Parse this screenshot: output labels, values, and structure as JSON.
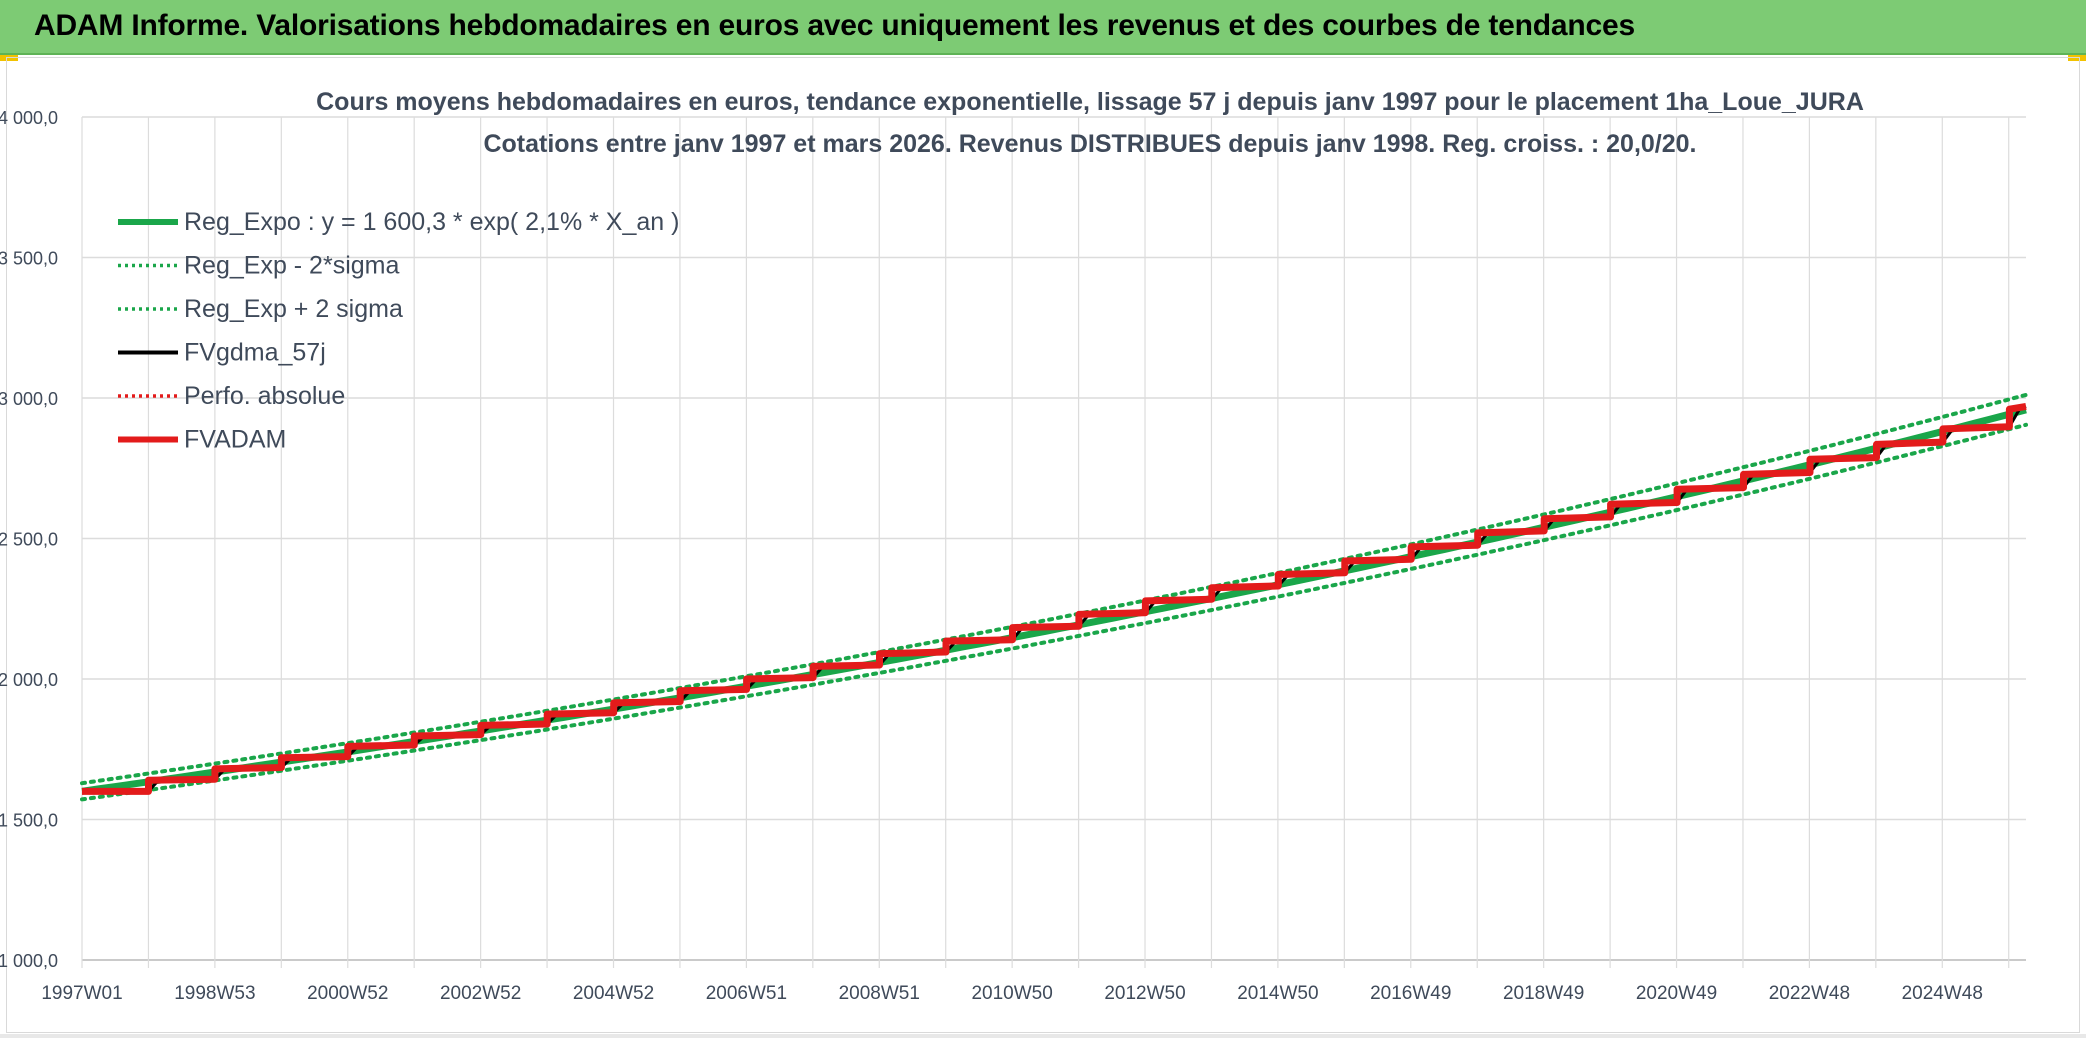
{
  "banner": {
    "title": "ADAM Informe. Valorisations hebdomadaires en euros avec uniquement les revenus et des courbes de tendances"
  },
  "colors": {
    "banner": "#7dcb74",
    "reg": "#1aa64a",
    "black": "#000000",
    "red": "#e31b1b",
    "grid": "#dcdcdc",
    "text": "#3f4a5a"
  },
  "chart_data": {
    "type": "line",
    "title": "Cours moyens hebdomadaires en euros, tendance exponentielle, lissage 57 j depuis janv 1997 pour le placement 1ha_Loue_JURA",
    "subtitle": "Cotations entre janv 1997 et mars 2026. Revenus DISTRIBUES depuis janv 1998. Reg. croiss. : 20,0/20.",
    "xlabel": "",
    "ylabel": "",
    "ylim": [
      1000,
      4000
    ],
    "y_ticks": [
      "1 000,0",
      "1 500,0",
      "2 000,0",
      "2 500,0",
      "3 000,0",
      "3 500,0",
      "4 000,0"
    ],
    "y_tick_values": [
      1000,
      1500,
      2000,
      2500,
      3000,
      3500,
      4000
    ],
    "x_range": [
      1997.0,
      2026.25
    ],
    "x_tick_labels": [
      "1997W01",
      "1998W53",
      "2000W52",
      "2002W52",
      "2004W52",
      "2006W51",
      "2008W51",
      "2010W50",
      "2012W50",
      "2014W50",
      "2016W49",
      "2018W49",
      "2020W49",
      "2022W48",
      "2024W48"
    ],
    "grid": true,
    "legend_position": "top-left",
    "legend": [
      {
        "label": "Reg_Expo : y = 1 600,3 * exp( 2,1% *  X_an )",
        "color": "#1aa64a",
        "style": "solid-thick"
      },
      {
        "label": "Reg_Exp - 2*sigma",
        "color": "#1aa64a",
        "style": "dotted"
      },
      {
        "label": "Reg_Exp + 2 sigma",
        "color": "#1aa64a",
        "style": "dotted"
      },
      {
        "label": "FVgdma_57j",
        "color": "#000000",
        "style": "solid"
      },
      {
        "label": "Perfo. absolue",
        "color": "#e31b1b",
        "style": "dotted"
      },
      {
        "label": "FVADAM",
        "color": "#e31b1b",
        "style": "solid-thick"
      }
    ],
    "regression": {
      "a": 1600.3,
      "b": 0.021,
      "x_start": 1997.0,
      "x_end": 2026.25,
      "lower_factor": 0.982,
      "upper_factor": 1.018
    },
    "series": [
      {
        "name": "FVADAM",
        "x": [
          1997.0,
          1998.0,
          1998.0,
          1999.0,
          1999.0,
          2000.0,
          2000.0,
          2001.0,
          2001.0,
          2002.0,
          2002.0,
          2003.0,
          2003.0,
          2004.0,
          2004.0,
          2005.0,
          2005.0,
          2006.0,
          2006.0,
          2007.0,
          2007.0,
          2008.0,
          2008.0,
          2009.0,
          2009.0,
          2010.0,
          2010.0,
          2011.0,
          2011.0,
          2012.0,
          2012.0,
          2013.0,
          2013.0,
          2014.0,
          2014.0,
          2015.0,
          2015.0,
          2016.0,
          2016.0,
          2017.0,
          2017.0,
          2018.0,
          2018.0,
          2019.0,
          2019.0,
          2020.0,
          2020.0,
          2021.0,
          2021.0,
          2022.0,
          2022.0,
          2023.0,
          2023.0,
          2024.0,
          2024.0,
          2025.0,
          2025.0,
          2026.0,
          2026.0,
          2026.25
        ],
        "values": [
          1600,
          1600,
          1640,
          1643,
          1680,
          1685,
          1720,
          1724,
          1760,
          1765,
          1797,
          1802,
          1835,
          1840,
          1875,
          1880,
          1915,
          1920,
          1958,
          1963,
          2000,
          2005,
          2045,
          2050,
          2090,
          2096,
          2135,
          2140,
          2183,
          2188,
          2230,
          2236,
          2278,
          2284,
          2325,
          2331,
          2372,
          2378,
          2420,
          2426,
          2470,
          2476,
          2520,
          2527,
          2570,
          2577,
          2622,
          2628,
          2675,
          2681,
          2728,
          2735,
          2782,
          2788,
          2835,
          2843,
          2890,
          2898,
          2960,
          2970
        ]
      },
      {
        "name": "FVgdma_57j",
        "x": [
          1997.0,
          1998.0,
          1998.15,
          1999.0,
          1999.15,
          2000.0,
          2000.15,
          2001.0,
          2001.15,
          2002.0,
          2002.15,
          2003.0,
          2003.15,
          2004.0,
          2004.15,
          2005.0,
          2005.15,
          2006.0,
          2006.15,
          2007.0,
          2007.15,
          2008.0,
          2008.15,
          2009.0,
          2009.15,
          2010.0,
          2010.15,
          2011.0,
          2011.15,
          2012.0,
          2012.15,
          2013.0,
          2013.15,
          2014.0,
          2014.15,
          2015.0,
          2015.15,
          2016.0,
          2016.15,
          2017.0,
          2017.15,
          2018.0,
          2018.15,
          2019.0,
          2019.15,
          2020.0,
          2020.15,
          2021.0,
          2021.15,
          2022.0,
          2022.15,
          2023.0,
          2023.15,
          2024.0,
          2024.15,
          2025.0,
          2025.15,
          2026.0,
          2026.15,
          2026.25
        ],
        "values": [
          1600,
          1600,
          1640,
          1643,
          1680,
          1685,
          1720,
          1724,
          1760,
          1765,
          1797,
          1802,
          1835,
          1840,
          1875,
          1880,
          1915,
          1920,
          1958,
          1963,
          2000,
          2005,
          2045,
          2050,
          2090,
          2096,
          2135,
          2140,
          2183,
          2188,
          2230,
          2236,
          2278,
          2284,
          2325,
          2331,
          2372,
          2378,
          2420,
          2426,
          2470,
          2476,
          2520,
          2527,
          2570,
          2577,
          2622,
          2628,
          2675,
          2681,
          2728,
          2735,
          2782,
          2788,
          2835,
          2843,
          2890,
          2898,
          2960,
          2970
        ]
      }
    ]
  }
}
